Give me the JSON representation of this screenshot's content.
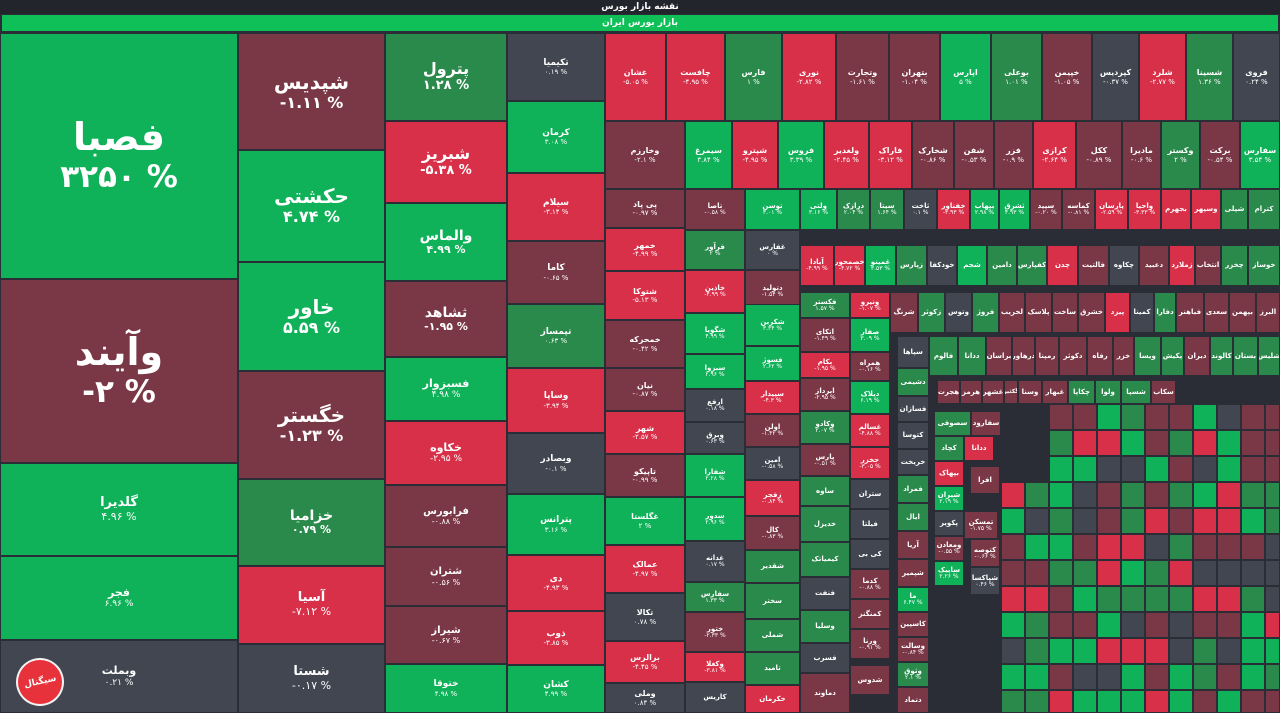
{
  "header": {
    "title": "نقشه بازار بورس",
    "market": "بازار بورس ایران"
  },
  "colors": {
    "background": "#2b2d36",
    "strong_positive": "#0fb159",
    "positive": "#2a8a4c",
    "neutral": "#414650",
    "negative": "#7a3745",
    "strong_negative": "#d9304a"
  },
  "logo_icon": "brand-logo-icon",
  "tiles": [
    {
      "name": "فصبا",
      "pct": "۳۲۵۰ %",
      "tone": "sp"
    },
    {
      "name": "وآیند",
      "pct": "-۲ %",
      "tone": "n"
    },
    {
      "name": "گلدیرا",
      "pct": "۴.۹۶ %",
      "tone": "sp"
    },
    {
      "name": "فجر",
      "pct": "۶.۹۶ %",
      "tone": "sp"
    },
    {
      "name": "وبملت",
      "pct": "۰.۲۱ %",
      "tone": "z"
    },
    {
      "name": "شپدیس",
      "pct": "-۱.۱۱ %",
      "tone": "n"
    },
    {
      "name": "حکشتی",
      "pct": "۴.۷۴ %",
      "tone": "sp"
    },
    {
      "name": "خاور",
      "pct": "۵.۵۹ %",
      "tone": "sp"
    },
    {
      "name": "خگستر",
      "pct": "-۱.۲۳ %",
      "tone": "n"
    },
    {
      "name": "خزامیا",
      "pct": "۰.۷۹ %",
      "tone": "p"
    },
    {
      "name": "آسیا",
      "pct": "-۷.۱۲ %",
      "tone": "sn"
    },
    {
      "name": "شستا",
      "pct": "-۰.۱۷ %",
      "tone": "z"
    },
    {
      "name": "پترول",
      "pct": "۱.۲۸ %",
      "tone": "p"
    },
    {
      "name": "شبریز",
      "pct": "-۵.۳۸ %",
      "tone": "sn"
    },
    {
      "name": "والماس",
      "pct": "۴.۹۹ %",
      "tone": "sp"
    },
    {
      "name": "ثشاهد",
      "pct": "-۱.۹۵ %",
      "tone": "n"
    },
    {
      "name": "فسبزوار",
      "pct": "۴.۹۸ %",
      "tone": "sp"
    },
    {
      "name": "خکاوه",
      "pct": "-۲.۹۵ %",
      "tone": "sn"
    },
    {
      "name": "فرابورس",
      "pct": "-۰.۸۸ %",
      "tone": "n"
    },
    {
      "name": "شتران",
      "pct": "-۰.۵۶ %",
      "tone": "n"
    },
    {
      "name": "شیراز",
      "pct": "-۰.۶۷ %",
      "tone": "n"
    },
    {
      "name": "ختوقا",
      "pct": "۴.۹۸ %",
      "tone": "sp"
    },
    {
      "name": "تکیمیا",
      "pct": "۰.۱۹ %",
      "tone": "z"
    },
    {
      "name": "کرمان",
      "pct": "۳.۰۸ %",
      "tone": "sp"
    },
    {
      "name": "سیلام",
      "pct": "-۳.۱۴ %",
      "tone": "sn"
    },
    {
      "name": "کاما",
      "pct": "-۰.۶۵ %",
      "tone": "n"
    },
    {
      "name": "تپمساز",
      "pct": "۰.۶۳ %",
      "tone": "p"
    },
    {
      "name": "وساپا",
      "pct": "-۳.۹۴ %",
      "tone": "sn"
    },
    {
      "name": "وبصادر",
      "pct": "-۰.۱ %",
      "tone": "z"
    },
    {
      "name": "پترانس",
      "pct": "۳.۱۶ %",
      "tone": "sp"
    },
    {
      "name": "دی",
      "pct": "-۴.۹۳ %",
      "tone": "sn"
    },
    {
      "name": "ذوب",
      "pct": "-۳.۸۵ %",
      "tone": "sn"
    },
    {
      "name": "کشان",
      "pct": "۴.۹۹ %",
      "tone": "sp"
    },
    {
      "name": "غشان",
      "pct": "-۵.۰۵ %",
      "tone": "sn"
    },
    {
      "name": "چافست",
      "pct": "-۴.۹۵ %",
      "tone": "sn"
    },
    {
      "name": "فارس",
      "pct": "۱ %",
      "tone": "p"
    },
    {
      "name": "نوری",
      "pct": "-۲.۸۲ %",
      "tone": "sn"
    },
    {
      "name": "وتجارت",
      "pct": "-۱.۶۱ %",
      "tone": "n"
    },
    {
      "name": "بتهران",
      "pct": "-۱.۰۴ %",
      "tone": "n"
    },
    {
      "name": "اپارس",
      "pct": "۵ %",
      "tone": "sp"
    },
    {
      "name": "بوعلی",
      "pct": "۱.۰۱ %",
      "tone": "p"
    },
    {
      "name": "خپیمن",
      "pct": "-۱.۰۵ %",
      "tone": "n"
    },
    {
      "name": "کپردیس",
      "pct": "-۰.۳۷ %",
      "tone": "z"
    },
    {
      "name": "شلرد",
      "pct": "-۲.۷۷ %",
      "tone": "sn"
    },
    {
      "name": "شسینا",
      "pct": "۱.۳۶ %",
      "tone": "p"
    },
    {
      "name": "فروی",
      "pct": "۰.۲۴ %",
      "tone": "z"
    },
    {
      "name": "وخارزم",
      "pct": "-۲.۱ %",
      "tone": "n"
    },
    {
      "name": "سیمرغ",
      "pct": "۳.۸۴ %",
      "tone": "sp"
    },
    {
      "name": "شپترو",
      "pct": "-۴.۹۵ %",
      "tone": "sn"
    },
    {
      "name": "فروس",
      "pct": "۳.۳۹ %",
      "tone": "sp"
    },
    {
      "name": "ولغدیر",
      "pct": "-۲.۴۵ %",
      "tone": "sn"
    },
    {
      "name": "فاراک",
      "pct": "-۳.۱۲ %",
      "tone": "sn"
    },
    {
      "name": "شخارک",
      "pct": "-۰.۸۶ %",
      "tone": "n"
    },
    {
      "name": "شفن",
      "pct": "-۰.۵۳ %",
      "tone": "n"
    },
    {
      "name": "فزر",
      "pct": "-۰.۹ %",
      "tone": "n"
    },
    {
      "name": "کرازی",
      "pct": "-۲.۶۴ %",
      "tone": "sn"
    },
    {
      "name": "ککل",
      "pct": "-۰.۸۹ %",
      "tone": "n"
    },
    {
      "name": "مادیرا",
      "pct": "-۰.۶ %",
      "tone": "n"
    },
    {
      "name": "وکستر",
      "pct": "۲ %",
      "tone": "p"
    },
    {
      "name": "برکت",
      "pct": "-۰.۵۴ %",
      "tone": "n"
    },
    {
      "name": "سفارس",
      "pct": "۳.۵۴ %",
      "tone": "sp"
    },
    {
      "name": "پی پاد",
      "pct": "-۰.۹۷ %",
      "tone": "n"
    },
    {
      "name": "تاصا",
      "pct": "-۰.۵۸ %",
      "tone": "n"
    },
    {
      "name": "توسن",
      "pct": "۳.۰۱ %",
      "tone": "sp"
    },
    {
      "name": "ولتی",
      "pct": "۳.۱۶ %",
      "tone": "sp"
    },
    {
      "name": "درازک",
      "pct": "۲.۰۴ %",
      "tone": "p"
    },
    {
      "name": "سیتا",
      "pct": "۱.۶۴ %",
      "tone": "p"
    },
    {
      "name": "ثاخت",
      "pct": "۰.۱ %",
      "tone": "z"
    },
    {
      "name": "خفناور",
      "pct": "-۳.۹۳ %",
      "tone": "sn"
    },
    {
      "name": "بپهاب",
      "pct": "۲.۹۸ %",
      "tone": "sp"
    },
    {
      "name": "ثشرق",
      "pct": "۴.۹۳ %",
      "tone": "sp"
    },
    {
      "name": "سپید",
      "pct": "-۰.۲۰ %",
      "tone": "n"
    },
    {
      "name": "کماسه",
      "pct": "-۰.۸۱ %",
      "tone": "n"
    },
    {
      "name": "پارسان",
      "pct": "-۲.۵۹ %",
      "tone": "sn"
    },
    {
      "name": "واحیا",
      "pct": "-۳.۳۳ %",
      "tone": "sn"
    },
    {
      "name": "بجهرم",
      "pct": "",
      "tone": "sn"
    },
    {
      "name": "وسپهر",
      "pct": "",
      "tone": "sn"
    },
    {
      "name": "شپلی",
      "pct": "",
      "tone": "p"
    },
    {
      "name": "کترام",
      "pct": "",
      "tone": "p"
    },
    {
      "name": "خمهر",
      "pct": "-۴.۹۹ %",
      "tone": "sn"
    },
    {
      "name": "فرآور",
      "pct": "۲ %",
      "tone": "p"
    },
    {
      "name": "غفارس",
      "pct": "۰ %",
      "tone": "z"
    },
    {
      "name": "آبادا",
      "pct": "-۴.۹۹ %",
      "tone": "sn"
    },
    {
      "name": "خصمحور",
      "pct": "-۴.۷۲ %",
      "tone": "sn"
    },
    {
      "name": "غمینو",
      "pct": "۳.۵۳ %",
      "tone": "sp"
    },
    {
      "name": "زپارس",
      "pct": "",
      "tone": "p"
    },
    {
      "name": "خودکفا",
      "pct": "",
      "tone": "z"
    },
    {
      "name": "شجم",
      "pct": "",
      "tone": "sp"
    },
    {
      "name": "دامین",
      "pct": "",
      "tone": "p"
    },
    {
      "name": "کفپارس",
      "pct": "",
      "tone": "p"
    },
    {
      "name": "چدن",
      "pct": "",
      "tone": "sn"
    },
    {
      "name": "فالتیت",
      "pct": "",
      "tone": "n"
    },
    {
      "name": "چکاوه",
      "pct": "",
      "tone": "z"
    },
    {
      "name": "دعبید",
      "pct": "",
      "tone": "n"
    },
    {
      "name": "زملارد",
      "pct": "",
      "tone": "sn"
    },
    {
      "name": "انتخاب",
      "pct": "",
      "tone": "n"
    },
    {
      "name": "چخزر",
      "pct": "",
      "tone": "p"
    },
    {
      "name": "خوساز",
      "pct": "",
      "tone": "p"
    },
    {
      "name": "شتوکا",
      "pct": "-۵.۱۳ %",
      "tone": "sn"
    },
    {
      "name": "خاذین",
      "pct": "-۴.۹۹ %",
      "tone": "sn"
    },
    {
      "name": "دتولید",
      "pct": "-۱.۵۴ %",
      "tone": "n"
    },
    {
      "name": "فکستر",
      "pct": "۱.۵۷ %",
      "tone": "p"
    },
    {
      "name": "ونیرو",
      "pct": "-۱.۰۷ %",
      "tone": "sn"
    },
    {
      "name": "شرنگ",
      "pct": "",
      "tone": "n"
    },
    {
      "name": "زکوثر",
      "pct": "",
      "tone": "p"
    },
    {
      "name": "وتوس",
      "pct": "",
      "tone": "z"
    },
    {
      "name": "فروژ",
      "pct": "",
      "tone": "p"
    },
    {
      "name": "لخریب",
      "pct": "",
      "tone": "n"
    },
    {
      "name": "پلاسک",
      "pct": "",
      "tone": "n"
    },
    {
      "name": "ساخت",
      "pct": "",
      "tone": "n"
    },
    {
      "name": "خشرق",
      "pct": "",
      "tone": "n"
    },
    {
      "name": "پیزد",
      "pct": "",
      "tone": "sn"
    },
    {
      "name": "کمینا",
      "pct": "",
      "tone": "z"
    },
    {
      "name": "دفارا",
      "pct": "",
      "tone": "p"
    },
    {
      "name": "فباهنر",
      "pct": "",
      "tone": "n"
    },
    {
      "name": "سعدی",
      "pct": "",
      "tone": "n"
    },
    {
      "name": "بپهمن",
      "pct": "",
      "tone": "n"
    },
    {
      "name": "البرز",
      "pct": "",
      "tone": "n"
    },
    {
      "name": "خمحرکه",
      "pct": "-۰.۴۲ %",
      "tone": "n"
    },
    {
      "name": "شگویا",
      "pct": "۴.۹۹ %",
      "tone": "sp"
    },
    {
      "name": "شکربن",
      "pct": "۳.۳۴ %",
      "tone": "sp"
    },
    {
      "name": "اتکای",
      "pct": "-۱.۴۹ %",
      "tone": "n"
    },
    {
      "name": "صفار",
      "pct": "۳.۰۹ %",
      "tone": "sp"
    },
    {
      "name": "سپاها",
      "pct": "",
      "tone": "z"
    },
    {
      "name": "فالوم",
      "pct": "",
      "tone": "p"
    },
    {
      "name": "ددانا",
      "pct": "",
      "tone": "p"
    },
    {
      "name": "براسان",
      "pct": "",
      "tone": "n"
    },
    {
      "name": "درهاور",
      "pct": "",
      "tone": "n"
    },
    {
      "name": "رمپنا",
      "pct": "",
      "tone": "n"
    },
    {
      "name": "دکوثر",
      "pct": "",
      "tone": "n"
    },
    {
      "name": "رفاه",
      "pct": "",
      "tone": "n"
    },
    {
      "name": "خزر",
      "pct": "",
      "tone": "n"
    },
    {
      "name": "ویسا",
      "pct": "",
      "tone": "p"
    },
    {
      "name": "پکیش",
      "pct": "",
      "tone": "p"
    },
    {
      "name": "دیران",
      "pct": "",
      "tone": "n"
    },
    {
      "name": "کالوند",
      "pct": "",
      "tone": "p"
    },
    {
      "name": "بستان",
      "pct": "",
      "tone": "p"
    },
    {
      "name": "شلیس",
      "pct": "",
      "tone": "p"
    },
    {
      "name": "سبزوا",
      "pct": "۲.۹۶ %",
      "tone": "sp"
    },
    {
      "name": "فسوژ",
      "pct": "۲.۶۲ %",
      "tone": "sp"
    },
    {
      "name": "بکام",
      "pct": "-۱.۹۵ %",
      "tone": "sn"
    },
    {
      "name": "همراه",
      "pct": "-۰.۱۶ %",
      "tone": "n"
    },
    {
      "name": "دشیمی",
      "pct": "",
      "tone": "p"
    },
    {
      "name": "شسپا",
      "pct": "",
      "tone": "p"
    },
    {
      "name": "سکاب",
      "pct": "",
      "tone": "n"
    },
    {
      "name": "ولوا",
      "pct": "",
      "tone": "p"
    },
    {
      "name": "چکاپا",
      "pct": "",
      "tone": "p"
    },
    {
      "name": "غبهار",
      "pct": "",
      "tone": "n"
    },
    {
      "name": "وسنا",
      "pct": "",
      "tone": "n"
    },
    {
      "name": "گکثیر",
      "pct": "",
      "tone": "n"
    },
    {
      "name": "غشهر",
      "pct": "",
      "tone": "n"
    },
    {
      "name": "هرمز",
      "pct": "",
      "tone": "n"
    },
    {
      "name": "هجرت",
      "pct": "",
      "tone": "n"
    },
    {
      "name": "نیان",
      "pct": "-۰.۸۷ %",
      "tone": "n"
    },
    {
      "name": "ارفع",
      "pct": "۰.۱۸ %",
      "tone": "z"
    },
    {
      "name": "سپیدار",
      "pct": "-۴.۳ %",
      "tone": "sn"
    },
    {
      "name": "ابرداز",
      "pct": "-۲.۹۵ %",
      "tone": "n"
    },
    {
      "name": "دیلاک",
      "pct": "۶.۱۹ %",
      "tone": "sp"
    },
    {
      "name": "فسازان",
      "pct": "",
      "tone": "z"
    },
    {
      "name": "شهر",
      "pct": "-۲.۵۷ %",
      "tone": "sn"
    },
    {
      "name": "وبرق",
      "pct": "۰.۶۳ %",
      "tone": "z"
    },
    {
      "name": "اولن",
      "pct": "-۱.۴۲ %",
      "tone": "n"
    },
    {
      "name": "وکادو",
      "pct": "۲.۰۷ %",
      "tone": "p"
    },
    {
      "name": "غسالم",
      "pct": "-۴.۸۸ %",
      "tone": "sn"
    },
    {
      "name": "کتوسا",
      "pct": "",
      "tone": "z"
    },
    {
      "name": "سفارود",
      "pct": "",
      "tone": "n"
    },
    {
      "name": "سصوفی",
      "pct": "",
      "tone": "p"
    },
    {
      "name": "تاپیکو",
      "pct": "-۰.۹۹ %",
      "tone": "n"
    },
    {
      "name": "شفارا",
      "pct": "۲.۲۸ %",
      "tone": "sp"
    },
    {
      "name": "امین",
      "pct": "-۰.۵۸ %",
      "tone": "z"
    },
    {
      "name": "پارس",
      "pct": "-۰.۵۱ %",
      "tone": "n"
    },
    {
      "name": "حخزر",
      "pct": "-۳.۰۵ %",
      "tone": "sn"
    },
    {
      "name": "خریخت",
      "pct": "",
      "tone": "z"
    },
    {
      "name": "کچاد",
      "pct": "",
      "tone": "p"
    },
    {
      "name": "ددانا",
      "pct": "",
      "tone": "sn"
    },
    {
      "name": "بپهاک",
      "pct": "",
      "tone": "sn"
    },
    {
      "name": "غگلستا",
      "pct": "۲ %",
      "tone": "sp"
    },
    {
      "name": "سدور",
      "pct": "۲.۹۶ %",
      "tone": "sp"
    },
    {
      "name": "زفجر",
      "pct": "-۰.۸۴ %",
      "tone": "sn"
    },
    {
      "name": "ساوه",
      "pct": "",
      "tone": "p"
    },
    {
      "name": "ستران",
      "pct": "",
      "tone": "z"
    },
    {
      "name": "فمراد",
      "pct": "",
      "tone": "p"
    },
    {
      "name": "افرا",
      "pct": "",
      "tone": "n"
    },
    {
      "name": "شیران",
      "pct": "۲.۱۹ %",
      "tone": "sp"
    },
    {
      "name": "عمالک",
      "pct": "-۴.۹۷ %",
      "tone": "sn"
    },
    {
      "name": "غدانه",
      "pct": "۰.۱۷ %",
      "tone": "z"
    },
    {
      "name": "کال",
      "pct": "-۰.۸۳ %",
      "tone": "n"
    },
    {
      "name": "خدیزل",
      "pct": "",
      "tone": "p"
    },
    {
      "name": "فیلتا",
      "pct": "",
      "tone": "z"
    },
    {
      "name": "ایال",
      "pct": "",
      "tone": "p"
    },
    {
      "name": "پکویر",
      "pct": "",
      "tone": "z"
    },
    {
      "name": "ومعادن",
      "pct": "-۰.۵۵ %",
      "tone": "n"
    },
    {
      "name": "تمسکن",
      "pct": "-۱.۷۵ %",
      "tone": "n"
    },
    {
      "name": "تکالا",
      "pct": "۰.۷۸ %",
      "tone": "z"
    },
    {
      "name": "سفارس",
      "pct": "۱.۳۳ %",
      "tone": "p"
    },
    {
      "name": "شقدیر",
      "pct": "",
      "tone": "p"
    },
    {
      "name": "کیمیاتک",
      "pct": "",
      "tone": "p"
    },
    {
      "name": "کی بی",
      "pct": "",
      "tone": "z"
    },
    {
      "name": "آریا",
      "pct": "",
      "tone": "n"
    },
    {
      "name": "شپمیر",
      "pct": "",
      "tone": "n"
    },
    {
      "name": "کتوصه",
      "pct": "-۰.۶۶ %",
      "tone": "n"
    },
    {
      "name": "ساپیک",
      "pct": "۲.۲۶ %",
      "tone": "sp"
    },
    {
      "name": "برالرس",
      "pct": "-۴.۴۵ %",
      "tone": "sn"
    },
    {
      "name": "ختور",
      "pct": "-۲.۳۳ %",
      "tone": "n"
    },
    {
      "name": "سختر",
      "pct": "",
      "tone": "p"
    },
    {
      "name": "فنفت",
      "pct": "",
      "tone": "z"
    },
    {
      "name": "کدما",
      "pct": "-۰.۸۸ %",
      "tone": "n"
    },
    {
      "name": "ما",
      "pct": "۶.۴۷ %",
      "tone": "sp"
    },
    {
      "name": "وکغلا",
      "pct": "-۳.۸۱ %",
      "tone": "sn"
    },
    {
      "name": "شملی",
      "pct": "",
      "tone": "p"
    },
    {
      "name": "وسلیا",
      "pct": "",
      "tone": "p"
    },
    {
      "name": "کمنگنز",
      "pct": "",
      "tone": "n"
    },
    {
      "name": "کاسپین",
      "pct": "",
      "tone": "n"
    },
    {
      "name": "وسالت",
      "pct": "-۰.۸۴ %",
      "tone": "n"
    },
    {
      "name": "شپاکسا",
      "pct": "۰.۴۶ %",
      "tone": "z"
    },
    {
      "name": "کامان",
      "pct": "۲.۱۱ %",
      "tone": "p"
    },
    {
      "name": "تامید",
      "pct": "",
      "tone": "p"
    },
    {
      "name": "فسرب",
      "pct": "",
      "tone": "z"
    },
    {
      "name": "ورنا",
      "pct": "-۰.۹۱ %",
      "tone": "n"
    },
    {
      "name": "وثوق",
      "pct": "۲.۱ %",
      "tone": "p"
    },
    {
      "name": "وملی",
      "pct": "۰.۸۴ %",
      "tone": "z"
    },
    {
      "name": "کاریس",
      "pct": "",
      "tone": "z"
    },
    {
      "name": "خکرمان",
      "pct": "",
      "tone": "sn"
    },
    {
      "name": "دماوند",
      "pct": "",
      "tone": "n"
    },
    {
      "name": "شدوس",
      "pct": "",
      "tone": "n"
    },
    {
      "name": "دتماد",
      "pct": "",
      "tone": "n"
    }
  ]
}
